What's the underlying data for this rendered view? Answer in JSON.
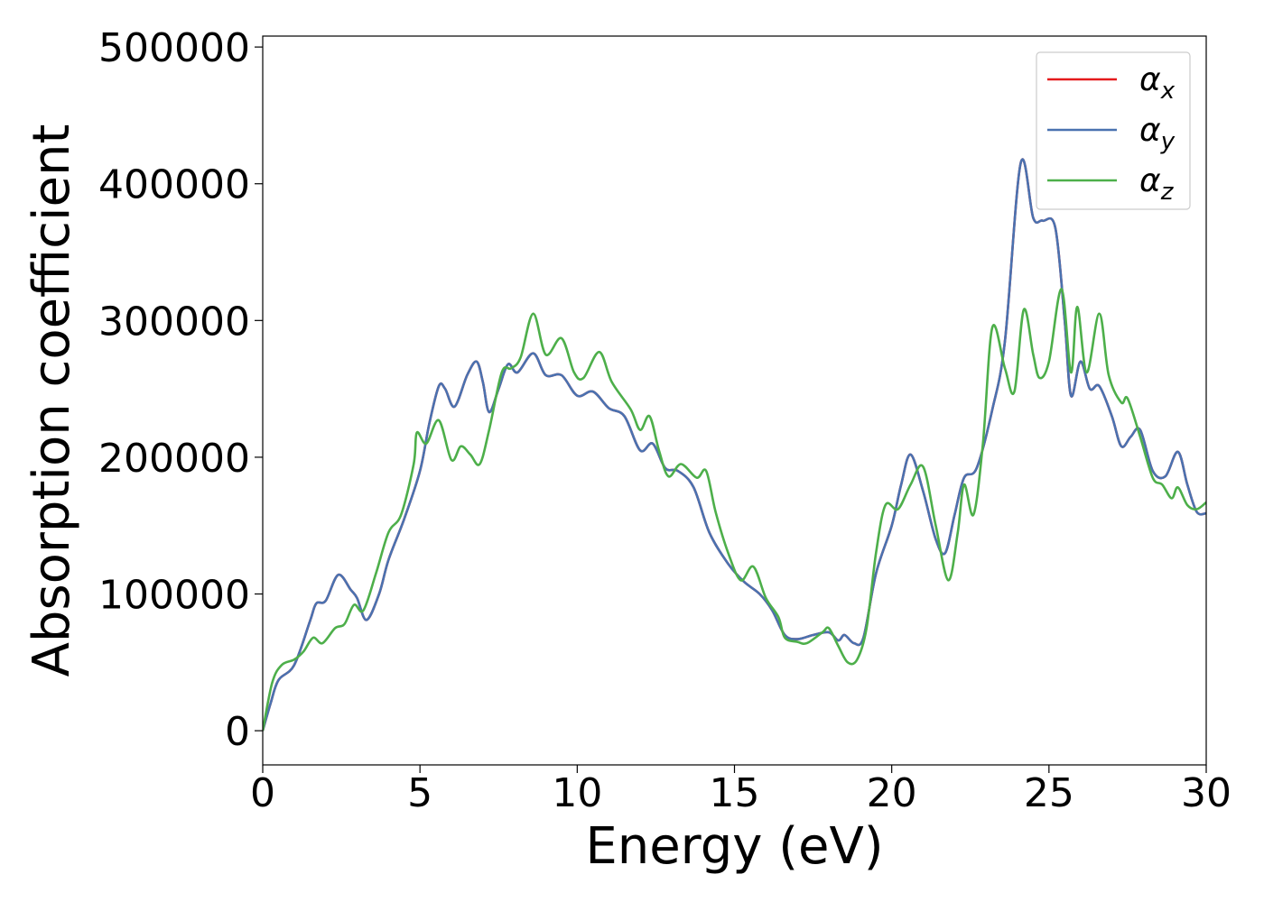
{
  "chart_data": {
    "type": "line",
    "xlabel": "Energy (eV)",
    "ylabel": "Absorption coefficient",
    "xlim": [
      0,
      30
    ],
    "ylim": [
      -25000,
      508000
    ],
    "xticks": [
      0,
      5,
      10,
      15,
      20,
      25,
      30
    ],
    "yticks": [
      0,
      100000,
      200000,
      300000,
      400000,
      500000
    ],
    "grid": false,
    "legend": "upper right",
    "series": [
      {
        "name": "αx",
        "color": "#e41a1c",
        "x": [
          0,
          0.25,
          0.5,
          1,
          1.5,
          1.7,
          2.0,
          2.4,
          2.8,
          3.0,
          3.3,
          3.7,
          4,
          4.5,
          5,
          5.3,
          5.6,
          5.8,
          6.1,
          6.5,
          6.8,
          7.0,
          7.2,
          7.5,
          7.8,
          8.1,
          8.6,
          9.0,
          9.5,
          10,
          10.5,
          11,
          11.5,
          12,
          12.4,
          12.8,
          13.2,
          13.7,
          14.2,
          14.8,
          15.3,
          15.8,
          16.2,
          16.6,
          17,
          17.5,
          18,
          18.3,
          18.5,
          18.8,
          19.1,
          19.5,
          20,
          20.3,
          20.6,
          21,
          21.4,
          21.7,
          22,
          22.3,
          22.7,
          23.2,
          23.6,
          24.1,
          24.5,
          24.8,
          25.2,
          25.5,
          25.7,
          26.0,
          26.3,
          26.6,
          27,
          27.3,
          27.6,
          27.9,
          28.3,
          28.7,
          29.1,
          29.4,
          29.7,
          30
        ],
        "values": [
          0,
          20000,
          37000,
          48000,
          80000,
          93000,
          95000,
          114000,
          103000,
          97000,
          81000,
          100000,
          125000,
          155000,
          190000,
          225000,
          252000,
          250000,
          237000,
          260000,
          270000,
          255000,
          233000,
          250000,
          268000,
          262000,
          276000,
          260000,
          260000,
          245000,
          248000,
          236000,
          230000,
          205000,
          210000,
          192000,
          190000,
          178000,
          145000,
          122000,
          109000,
          100000,
          88000,
          70000,
          67000,
          70000,
          72000,
          66000,
          70000,
          64000,
          68000,
          115000,
          150000,
          180000,
          202000,
          175000,
          140000,
          130000,
          158000,
          185000,
          192000,
          235000,
          285000,
          415000,
          375000,
          373000,
          368000,
          300000,
          245000,
          270000,
          250000,
          252000,
          230000,
          208000,
          215000,
          220000,
          190000,
          186000,
          204000,
          180000,
          160000,
          159000
        ]
      },
      {
        "name": "αy",
        "color": "#4a72b0",
        "x": [
          0,
          0.25,
          0.5,
          1,
          1.5,
          1.7,
          2.0,
          2.4,
          2.8,
          3.0,
          3.3,
          3.7,
          4,
          4.5,
          5,
          5.3,
          5.6,
          5.8,
          6.1,
          6.5,
          6.8,
          7.0,
          7.2,
          7.5,
          7.8,
          8.1,
          8.6,
          9.0,
          9.5,
          10,
          10.5,
          11,
          11.5,
          12,
          12.4,
          12.8,
          13.2,
          13.7,
          14.2,
          14.8,
          15.3,
          15.8,
          16.2,
          16.6,
          17,
          17.5,
          18,
          18.3,
          18.5,
          18.8,
          19.1,
          19.5,
          20,
          20.3,
          20.6,
          21,
          21.4,
          21.7,
          22,
          22.3,
          22.7,
          23.2,
          23.6,
          24.1,
          24.5,
          24.8,
          25.2,
          25.5,
          25.7,
          26.0,
          26.3,
          26.6,
          27,
          27.3,
          27.6,
          27.9,
          28.3,
          28.7,
          29.1,
          29.4,
          29.7,
          30
        ],
        "values": [
          0,
          20000,
          37000,
          48000,
          80000,
          93000,
          95000,
          114000,
          103000,
          97000,
          81000,
          100000,
          125000,
          155000,
          190000,
          225000,
          252000,
          250000,
          237000,
          260000,
          270000,
          255000,
          233000,
          250000,
          268000,
          262000,
          276000,
          260000,
          260000,
          245000,
          248000,
          236000,
          230000,
          205000,
          210000,
          192000,
          190000,
          178000,
          145000,
          122000,
          109000,
          100000,
          88000,
          70000,
          67000,
          70000,
          72000,
          66000,
          70000,
          64000,
          68000,
          115000,
          150000,
          180000,
          202000,
          175000,
          140000,
          130000,
          158000,
          185000,
          192000,
          235000,
          285000,
          415000,
          375000,
          373000,
          368000,
          300000,
          245000,
          270000,
          250000,
          252000,
          230000,
          208000,
          215000,
          220000,
          190000,
          186000,
          204000,
          180000,
          160000,
          159000
        ]
      },
      {
        "name": "αz",
        "color": "#4daf4a",
        "x": [
          0,
          0.3,
          0.6,
          1,
          1.3,
          1.6,
          1.9,
          2.3,
          2.6,
          2.9,
          3.2,
          3.6,
          4,
          4.4,
          4.8,
          4.9,
          5.2,
          5.6,
          6.0,
          6.3,
          6.6,
          6.9,
          7.2,
          7.6,
          7.9,
          8.2,
          8.6,
          9.0,
          9.5,
          9.9,
          10.2,
          10.7,
          11.1,
          11.7,
          12.0,
          12.3,
          12.6,
          12.9,
          13.3,
          13.8,
          14.1,
          14.4,
          14.8,
          15.2,
          15.6,
          16.0,
          16.4,
          16.6,
          17.0,
          17.3,
          17.8,
          18.0,
          18.3,
          18.6,
          18.9,
          19.2,
          19.5,
          19.8,
          20.2,
          20.6,
          21.0,
          21.4,
          21.8,
          22.1,
          22.3,
          22.6,
          22.9,
          23.2,
          23.6,
          23.9,
          24.2,
          24.5,
          24.7,
          25.0,
          25.4,
          25.7,
          25.9,
          26.2,
          26.6,
          26.9,
          27.3,
          27.5,
          27.9,
          28.3,
          28.6,
          28.9,
          29.1,
          29.4,
          29.7,
          30
        ],
        "values": [
          0,
          35000,
          48000,
          52000,
          58000,
          68000,
          64000,
          75000,
          78000,
          92000,
          88000,
          115000,
          145000,
          158000,
          195000,
          218000,
          210000,
          227000,
          198000,
          208000,
          202000,
          195000,
          220000,
          262000,
          265000,
          273000,
          305000,
          275000,
          287000,
          262000,
          258000,
          277000,
          255000,
          235000,
          220000,
          230000,
          205000,
          186000,
          195000,
          185000,
          190000,
          160000,
          130000,
          110000,
          120000,
          97000,
          83000,
          68000,
          65000,
          64000,
          72000,
          75000,
          62000,
          50000,
          52000,
          75000,
          130000,
          165000,
          162000,
          180000,
          193000,
          150000,
          110000,
          145000,
          180000,
          158000,
          210000,
          295000,
          265000,
          248000,
          308000,
          275000,
          258000,
          270000,
          323000,
          262000,
          310000,
          262000,
          305000,
          260000,
          240000,
          243000,
          215000,
          185000,
          180000,
          170000,
          178000,
          165000,
          162000,
          167000
        ]
      }
    ]
  }
}
